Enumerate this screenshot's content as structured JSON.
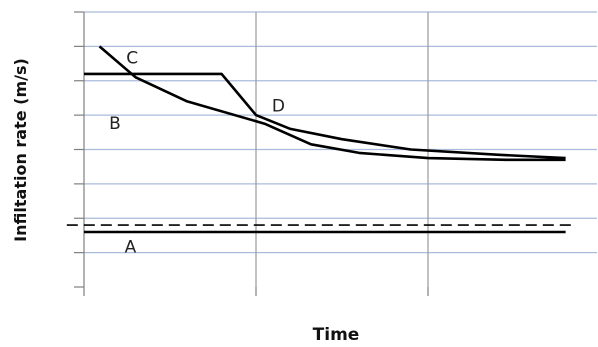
{
  "chart_data": {
    "type": "line",
    "title": "",
    "xlabel": "Time",
    "ylabel": "Infiltation rate (m/s)",
    "xlim": [
      0,
      3
    ],
    "ylim": [
      0,
      8
    ],
    "grid": true,
    "series": [
      {
        "name": "A",
        "style": "solid",
        "x": [
          0,
          2.8
        ],
        "y": [
          1.6,
          1.6
        ]
      },
      {
        "style": "dashed",
        "x": [
          -0.1,
          2.85
        ],
        "y": [
          1.8,
          1.8
        ]
      },
      {
        "name": "B",
        "style": "solid",
        "x": [
          0.09,
          0.3,
          0.6,
          1.05,
          1.32,
          1.6,
          2.0,
          2.45,
          2.8
        ],
        "y": [
          7.0,
          6.1,
          5.4,
          4.75,
          4.15,
          3.9,
          3.75,
          3.7,
          3.7
        ]
      },
      {
        "name": "C",
        "style": "solid",
        "x": [
          0,
          0.8,
          0.9,
          1.0,
          1.2,
          1.5,
          1.9,
          2.4,
          2.8
        ],
        "y": [
          6.2,
          6.2,
          5.6,
          5.0,
          4.6,
          4.3,
          4.0,
          3.85,
          3.75
        ]
      },
      {
        "name": "D",
        "style": "label-only"
      }
    ],
    "annotations": [
      {
        "text": "C",
        "x": 0.28,
        "y": 6.5
      },
      {
        "text": "B",
        "x": 0.18,
        "y": 4.6
      },
      {
        "text": "D",
        "x": 1.13,
        "y": 5.1
      },
      {
        "text": "A",
        "x": 0.27,
        "y": 1.0
      }
    ],
    "colors": {
      "line": "#000000",
      "grid_h": "#aabbdc",
      "grid_v": "#9a9a9a",
      "axis": "#808080"
    }
  }
}
